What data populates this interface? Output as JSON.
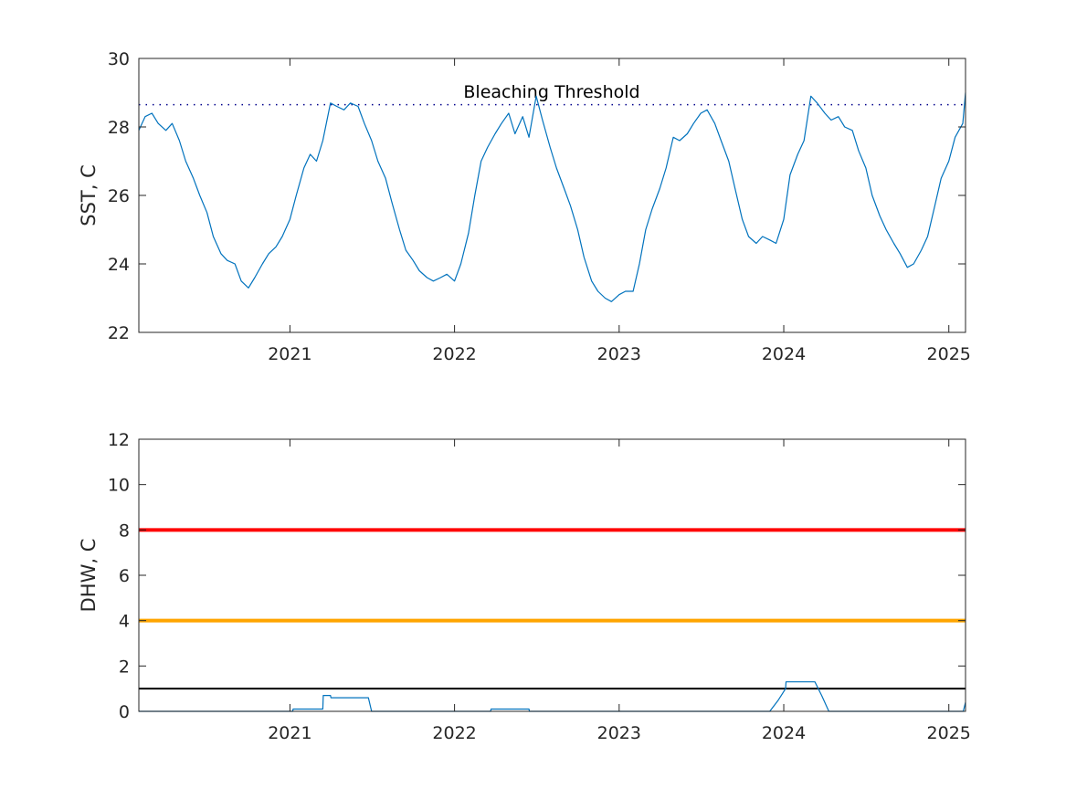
{
  "figure": {
    "colors": {
      "series": "#0072bd",
      "axes": "#262626",
      "threshold_line": "#00008b",
      "alert_level_2": "#ff0000",
      "alert_level_1": "#ffa500",
      "bleaching_watch": "#000000"
    }
  },
  "chart_data": [
    {
      "type": "line",
      "title": "",
      "xlabel": "",
      "ylabel": "SST, C",
      "xlim": [
        "2020-02-01",
        "2025-02-07"
      ],
      "ylim": [
        22,
        30
      ],
      "x_ticks": [
        "2021",
        "2022",
        "2023",
        "2024",
        "2025"
      ],
      "y_ticks": [
        "22",
        "24",
        "26",
        "28",
        "30"
      ],
      "grid": false,
      "annotation": "Bleaching Threshold",
      "threshold": 28.65,
      "series": [
        {
          "x": [
            "2020-02-01",
            "2020-02-15",
            "2020-03-01",
            "2020-03-15",
            "2020-04-01",
            "2020-04-15",
            "2020-05-01",
            "2020-05-15",
            "2020-06-01",
            "2020-06-15",
            "2020-07-01",
            "2020-07-15",
            "2020-08-01",
            "2020-08-15",
            "2020-09-01",
            "2020-09-15",
            "2020-10-01",
            "2020-10-15",
            "2020-11-01",
            "2020-11-15",
            "2020-12-01",
            "2020-12-15",
            "2021-01-01",
            "2021-01-15",
            "2021-02-01",
            "2021-02-15",
            "2021-03-01",
            "2021-03-15",
            "2021-04-01",
            "2021-04-15",
            "2021-05-01",
            "2021-05-15",
            "2021-06-01",
            "2021-06-15",
            "2021-07-01",
            "2021-07-15",
            "2021-08-01",
            "2021-08-15",
            "2021-09-01",
            "2021-09-15",
            "2021-10-01",
            "2021-10-15",
            "2021-11-01",
            "2021-11-15",
            "2021-12-01",
            "2021-12-15",
            "2022-01-01",
            "2022-01-15",
            "2022-02-01",
            "2022-02-15",
            "2022-03-01",
            "2022-03-15",
            "2022-04-01",
            "2022-04-15",
            "2022-05-01",
            "2022-05-15",
            "2022-06-01",
            "2022-06-15",
            "2022-07-01",
            "2022-07-15",
            "2022-08-01",
            "2022-08-15",
            "2022-09-01",
            "2022-09-15",
            "2022-10-01",
            "2022-10-15",
            "2022-11-01",
            "2022-11-15",
            "2022-12-01",
            "2022-12-15",
            "2023-01-01",
            "2023-01-15",
            "2023-02-01",
            "2023-02-15",
            "2023-03-01",
            "2023-03-15",
            "2023-04-01",
            "2023-04-15",
            "2023-05-01",
            "2023-05-15",
            "2023-06-01",
            "2023-06-15",
            "2023-07-01",
            "2023-07-15",
            "2023-08-01",
            "2023-08-15",
            "2023-09-01",
            "2023-09-15",
            "2023-10-01",
            "2023-10-15",
            "2023-11-01",
            "2023-11-15",
            "2023-12-01",
            "2023-12-15",
            "2024-01-01",
            "2024-01-15",
            "2024-02-01",
            "2024-02-15",
            "2024-03-01",
            "2024-03-15",
            "2024-04-01",
            "2024-04-15",
            "2024-05-01",
            "2024-05-15",
            "2024-06-01",
            "2024-06-15",
            "2024-07-01",
            "2024-07-15",
            "2024-08-01",
            "2024-08-15",
            "2024-09-01",
            "2024-09-15",
            "2024-10-01",
            "2024-10-15",
            "2024-11-01",
            "2024-11-15",
            "2024-12-01",
            "2024-12-15",
            "2025-01-01",
            "2025-01-15",
            "2025-02-01",
            "2025-02-07"
          ],
          "values": [
            27.9,
            28.3,
            28.4,
            28.1,
            27.9,
            28.1,
            27.6,
            27.0,
            26.5,
            26.0,
            25.5,
            24.8,
            24.3,
            24.1,
            24.0,
            23.5,
            23.3,
            23.6,
            24.0,
            24.3,
            24.5,
            24.8,
            25.3,
            26.0,
            26.8,
            27.2,
            27.0,
            27.6,
            28.7,
            28.6,
            28.5,
            28.7,
            28.6,
            28.1,
            27.6,
            27.0,
            26.5,
            25.8,
            25.0,
            24.4,
            24.1,
            23.8,
            23.6,
            23.5,
            23.6,
            23.7,
            23.5,
            24.0,
            24.9,
            26.0,
            27.0,
            27.4,
            27.8,
            28.1,
            28.4,
            27.8,
            28.3,
            27.7,
            28.9,
            28.2,
            27.4,
            26.8,
            26.2,
            25.7,
            25.0,
            24.2,
            23.5,
            23.2,
            23.0,
            22.9,
            23.1,
            23.2,
            23.2,
            24.0,
            25.0,
            25.6,
            26.2,
            26.8,
            27.7,
            27.6,
            27.8,
            28.1,
            28.4,
            28.5,
            28.1,
            27.6,
            27.0,
            26.2,
            25.3,
            24.8,
            24.6,
            24.8,
            24.7,
            24.6,
            25.3,
            26.6,
            27.2,
            27.6,
            28.9,
            28.7,
            28.4,
            28.2,
            28.3,
            28.0,
            27.9,
            27.3,
            26.8,
            26.0,
            25.4,
            25.0,
            24.6,
            24.3,
            23.9,
            24.0,
            24.4,
            24.8,
            25.7,
            26.5,
            27.0,
            27.7,
            28.1,
            29.0
          ]
        }
      ]
    },
    {
      "type": "line",
      "title": "",
      "xlabel": "",
      "ylabel": "DHW, C",
      "xlim": [
        "2020-02-01",
        "2025-02-07"
      ],
      "ylim": [
        0,
        12
      ],
      "x_ticks": [
        "2021",
        "2022",
        "2023",
        "2024",
        "2025"
      ],
      "y_ticks": [
        "0",
        "2",
        "4",
        "6",
        "8",
        "10",
        "12"
      ],
      "grid": false,
      "reference_lines": [
        {
          "value": 8,
          "color": "#ff0000"
        },
        {
          "value": 4,
          "color": "#ffa500"
        },
        {
          "value": 1,
          "color": "#000000"
        }
      ],
      "series": [
        {
          "x": [
            "2020-02-01",
            "2021-01-07",
            "2021-01-08",
            "2021-03-15",
            "2021-03-16",
            "2021-04-01",
            "2021-04-02",
            "2021-06-24",
            "2021-07-01",
            "2022-03-22",
            "2022-03-23",
            "2022-06-15",
            "2022-06-16",
            "2023-12-01",
            "2023-12-20",
            "2024-01-05",
            "2024-01-06",
            "2024-03-10",
            "2024-03-25",
            "2024-04-10",
            "2025-02-02",
            "2025-02-07"
          ],
          "values": [
            0,
            0,
            0.1,
            0.1,
            0.7,
            0.7,
            0.6,
            0.6,
            0,
            0,
            0.1,
            0.1,
            0,
            0,
            0.5,
            1.0,
            1.3,
            1.3,
            0.7,
            0,
            0,
            0.4
          ]
        }
      ]
    }
  ]
}
